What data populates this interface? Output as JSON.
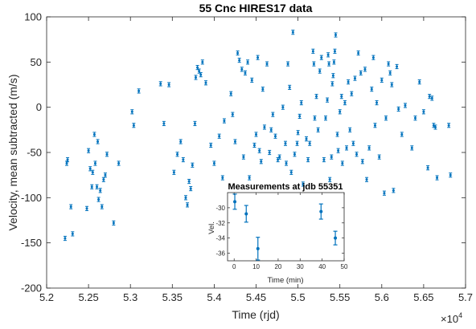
{
  "chart_data": [
    {
      "type": "scatter",
      "title": "55 Cnc HIRES17 data",
      "xlabel": "Time (rjd)",
      "ylabel": "Velocity, mean subtracted (m/s)",
      "x_exponent_label": "×10",
      "x_exponent_power": "4",
      "xlim": [
        5.2,
        5.7
      ],
      "ylim": [
        -200,
        100
      ],
      "xticks": [
        "5.2",
        "5.25",
        "5.3",
        "5.35",
        "5.4",
        "5.45",
        "5.5",
        "5.55",
        "5.6",
        "5.65",
        "5.7"
      ],
      "yticks": [
        "-200",
        "-150",
        "-100",
        "-50",
        "0",
        "50",
        "100"
      ],
      "grid": false,
      "marker_color": "#0072BD",
      "errorbar": true,
      "points": [
        [
          5.222,
          -145
        ],
        [
          5.224,
          -62
        ],
        [
          5.225,
          -58
        ],
        [
          5.229,
          -110
        ],
        [
          5.231,
          -140
        ],
        [
          5.248,
          -112
        ],
        [
          5.25,
          -48
        ],
        [
          5.252,
          -68
        ],
        [
          5.254,
          -88
        ],
        [
          5.255,
          -72
        ],
        [
          5.257,
          -30
        ],
        [
          5.258,
          -62
        ],
        [
          5.26,
          -88
        ],
        [
          5.261,
          -38
        ],
        [
          5.262,
          -102
        ],
        [
          5.264,
          -92
        ],
        [
          5.266,
          -110
        ],
        [
          5.268,
          -80
        ],
        [
          5.27,
          -75
        ],
        [
          5.272,
          -52
        ],
        [
          5.28,
          -128
        ],
        [
          5.286,
          -62
        ],
        [
          5.302,
          -5
        ],
        [
          5.304,
          -20
        ],
        [
          5.31,
          18
        ],
        [
          5.336,
          26
        ],
        [
          5.34,
          -18
        ],
        [
          5.346,
          25
        ],
        [
          5.352,
          -72
        ],
        [
          5.356,
          -52
        ],
        [
          5.36,
          -38
        ],
        [
          5.363,
          -58
        ],
        [
          5.366,
          -100
        ],
        [
          5.368,
          -108
        ],
        [
          5.37,
          -82
        ],
        [
          5.372,
          -90
        ],
        [
          5.374,
          -64
        ],
        [
          5.377,
          -18
        ],
        [
          5.378,
          33
        ],
        [
          5.38,
          44
        ],
        [
          5.382,
          40
        ],
        [
          5.384,
          36
        ],
        [
          5.386,
          50
        ],
        [
          5.39,
          27
        ],
        [
          5.396,
          -42
        ],
        [
          5.4,
          -62
        ],
        [
          5.406,
          -32
        ],
        [
          5.41,
          -78
        ],
        [
          5.412,
          -15
        ],
        [
          5.42,
          15
        ],
        [
          5.422,
          -8
        ],
        [
          5.425,
          -38
        ],
        [
          5.428,
          60
        ],
        [
          5.43,
          52
        ],
        [
          5.433,
          42
        ],
        [
          5.435,
          -55
        ],
        [
          5.437,
          38
        ],
        [
          5.44,
          50
        ],
        [
          5.442,
          -78
        ],
        [
          5.445,
          30
        ],
        [
          5.448,
          -42
        ],
        [
          5.45,
          -30
        ],
        [
          5.452,
          55
        ],
        [
          5.454,
          -48
        ],
        [
          5.456,
          -60
        ],
        [
          5.458,
          20
        ],
        [
          5.46,
          -22
        ],
        [
          5.463,
          48
        ],
        [
          5.466,
          -50
        ],
        [
          5.468,
          -25
        ],
        [
          5.47,
          -8
        ],
        [
          5.473,
          -32
        ],
        [
          5.476,
          -58
        ],
        [
          5.478,
          -55
        ],
        [
          5.482,
          0
        ],
        [
          5.485,
          -40
        ],
        [
          5.486,
          -62
        ],
        [
          5.488,
          48
        ],
        [
          5.49,
          22
        ],
        [
          5.492,
          -72
        ],
        [
          5.494,
          83
        ],
        [
          5.496,
          -52
        ],
        [
          5.499,
          -40
        ],
        [
          5.5,
          -28
        ],
        [
          5.502,
          -10
        ],
        [
          5.504,
          5
        ],
        [
          5.506,
          -85
        ],
        [
          5.51,
          -35
        ],
        [
          5.512,
          -58
        ],
        [
          5.514,
          -40
        ],
        [
          5.518,
          62
        ],
        [
          5.519,
          48
        ],
        [
          5.52,
          -12
        ],
        [
          5.522,
          12
        ],
        [
          5.524,
          -25
        ],
        [
          5.526,
          40
        ],
        [
          5.528,
          55
        ],
        [
          5.53,
          -100
        ],
        [
          5.531,
          -58
        ],
        [
          5.533,
          -12
        ],
        [
          5.535,
          8
        ],
        [
          5.536,
          58
        ],
        [
          5.537,
          48
        ],
        [
          5.538,
          -80
        ],
        [
          5.54,
          -55
        ],
        [
          5.541,
          26
        ],
        [
          5.542,
          35
        ],
        [
          5.543,
          50
        ],
        [
          5.544,
          62
        ],
        [
          5.545,
          80
        ],
        [
          5.547,
          -30
        ],
        [
          5.548,
          -48
        ],
        [
          5.55,
          -5
        ],
        [
          5.552,
          12
        ],
        [
          5.553,
          -62
        ],
        [
          5.556,
          5
        ],
        [
          5.558,
          -45
        ],
        [
          5.56,
          28
        ],
        [
          5.562,
          -25
        ],
        [
          5.564,
          15
        ],
        [
          5.566,
          -40
        ],
        [
          5.568,
          32
        ],
        [
          5.57,
          -52
        ],
        [
          5.572,
          60
        ],
        [
          5.575,
          38
        ],
        [
          5.577,
          -60
        ],
        [
          5.58,
          42
        ],
        [
          5.582,
          -80
        ],
        [
          5.585,
          -45
        ],
        [
          5.588,
          20
        ],
        [
          5.59,
          55
        ],
        [
          5.592,
          -20
        ],
        [
          5.594,
          5
        ],
        [
          5.597,
          -55
        ],
        [
          5.6,
          30
        ],
        [
          5.603,
          -95
        ],
        [
          5.605,
          -12
        ],
        [
          5.608,
          48
        ],
        [
          5.61,
          38
        ],
        [
          5.612,
          25
        ],
        [
          5.614,
          -92
        ],
        [
          5.618,
          45
        ],
        [
          5.62,
          -2
        ],
        [
          5.624,
          -30
        ],
        [
          5.628,
          2
        ],
        [
          5.636,
          -45
        ],
        [
          5.64,
          -12
        ],
        [
          5.645,
          28
        ],
        [
          5.65,
          -5
        ],
        [
          5.655,
          -67
        ],
        [
          5.657,
          12
        ],
        [
          5.66,
          10
        ],
        [
          5.662,
          -20
        ],
        [
          5.664,
          -22
        ],
        [
          5.666,
          -78
        ],
        [
          5.68,
          -20
        ],
        [
          5.682,
          -75
        ]
      ]
    },
    {
      "type": "scatter",
      "title": "Measurements at jdb 55351",
      "xlabel": "Time (min)",
      "ylabel": "Vel.",
      "xlim": [
        -3,
        50
      ],
      "ylim": [
        -37,
        -28
      ],
      "xticks": [
        "0",
        "10",
        "20",
        "30",
        "40",
        "50"
      ],
      "yticks": [
        "-36",
        "-34",
        "-32",
        "-30"
      ],
      "grid": false,
      "marker_color": "#0072BD",
      "errorbar": true,
      "points": [
        {
          "x": 0.3,
          "y": -29.2,
          "err": 1.0
        },
        {
          "x": 5.5,
          "y": -30.8,
          "err": 1.1
        },
        {
          "x": 10.8,
          "y": -35.4,
          "err": 1.5
        },
        {
          "x": 39.5,
          "y": -30.5,
          "err": 1.0
        },
        {
          "x": 46.0,
          "y": -34.0,
          "err": 0.9
        }
      ]
    }
  ]
}
